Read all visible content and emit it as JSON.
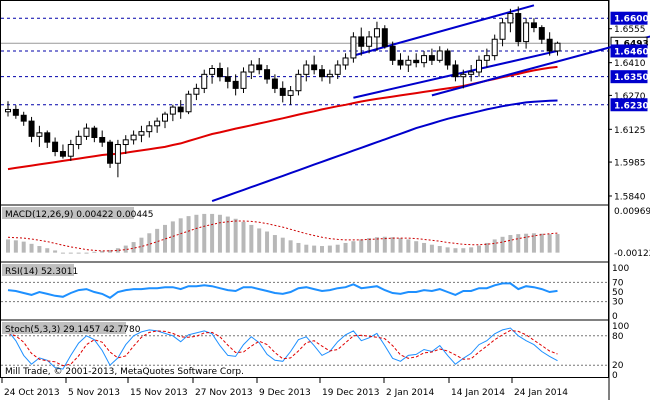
{
  "chart_data": {
    "type": "candlestick",
    "price_labels": [
      "1.6600",
      "1.6555",
      "1.6493",
      "1.6460",
      "1.6410",
      "1.6350",
      "1.6270",
      "1.6230",
      "1.6125",
      "1.5985",
      "1.5840"
    ],
    "highlight_levels": {
      "1.6600": {
        "bg": "#0000cc",
        "fg": "#ffffff"
      },
      "1.6493": {
        "bg": "#ffffff",
        "fg": "#000000",
        "border": "#000000"
      },
      "1.6460": {
        "bg": "#0000cc",
        "fg": "#ffffff"
      },
      "1.6350": {
        "bg": "#0000cc",
        "fg": "#ffffff"
      },
      "1.6230": {
        "bg": "#0000cc",
        "fg": "#ffffff"
      }
    },
    "ylim": [
      1.581,
      1.6665
    ],
    "dashed_levels": [
      1.66,
      1.646,
      1.635,
      1.623
    ],
    "current_price": 1.6493,
    "date_labels": [
      "24 Oct 2013",
      "5 Nov 2013",
      "15 Nov 2013",
      "27 Nov 2013",
      "9 Dec 2013",
      "19 Dec 2013",
      "2 Jan 2014",
      "14 Jan 2014",
      "24 Jan 2014"
    ],
    "candles": [
      {
        "o": 1.62,
        "h": 1.6245,
        "l": 1.618,
        "c": 1.621
      },
      {
        "o": 1.621,
        "h": 1.6228,
        "l": 1.617,
        "c": 1.6185
      },
      {
        "o": 1.6185,
        "h": 1.62,
        "l": 1.614,
        "c": 1.616
      },
      {
        "o": 1.616,
        "h": 1.6178,
        "l": 1.607,
        "c": 1.6095
      },
      {
        "o": 1.6095,
        "h": 1.614,
        "l": 1.605,
        "c": 1.611
      },
      {
        "o": 1.611,
        "h": 1.612,
        "l": 1.6045,
        "c": 1.607
      },
      {
        "o": 1.607,
        "h": 1.609,
        "l": 1.601,
        "c": 1.603
      },
      {
        "o": 1.603,
        "h": 1.606,
        "l": 1.6,
        "c": 1.601
      },
      {
        "o": 1.601,
        "h": 1.608,
        "l": 1.599,
        "c": 1.606
      },
      {
        "o": 1.606,
        "h": 1.612,
        "l": 1.604,
        "c": 1.6095
      },
      {
        "o": 1.6095,
        "h": 1.615,
        "l": 1.608,
        "c": 1.613
      },
      {
        "o": 1.613,
        "h": 1.614,
        "l": 1.607,
        "c": 1.609
      },
      {
        "o": 1.609,
        "h": 1.612,
        "l": 1.605,
        "c": 1.607
      },
      {
        "o": 1.607,
        "h": 1.608,
        "l": 1.596,
        "c": 1.598
      },
      {
        "o": 1.598,
        "h": 1.608,
        "l": 1.592,
        "c": 1.606
      },
      {
        "o": 1.606,
        "h": 1.61,
        "l": 1.602,
        "c": 1.608
      },
      {
        "o": 1.608,
        "h": 1.612,
        "l": 1.606,
        "c": 1.61
      },
      {
        "o": 1.61,
        "h": 1.614,
        "l": 1.607,
        "c": 1.6115
      },
      {
        "o": 1.6115,
        "h": 1.616,
        "l": 1.609,
        "c": 1.614
      },
      {
        "o": 1.614,
        "h": 1.6175,
        "l": 1.611,
        "c": 1.616
      },
      {
        "o": 1.616,
        "h": 1.62,
        "l": 1.613,
        "c": 1.619
      },
      {
        "o": 1.619,
        "h": 1.623,
        "l": 1.616,
        "c": 1.622
      },
      {
        "o": 1.622,
        "h": 1.625,
        "l": 1.617,
        "c": 1.62
      },
      {
        "o": 1.62,
        "h": 1.629,
        "l": 1.619,
        "c": 1.6275
      },
      {
        "o": 1.6275,
        "h": 1.632,
        "l": 1.625,
        "c": 1.63
      },
      {
        "o": 1.63,
        "h": 1.638,
        "l": 1.628,
        "c": 1.636
      },
      {
        "o": 1.636,
        "h": 1.64,
        "l": 1.632,
        "c": 1.6385
      },
      {
        "o": 1.6385,
        "h": 1.641,
        "l": 1.633,
        "c": 1.635
      },
      {
        "o": 1.635,
        "h": 1.639,
        "l": 1.63,
        "c": 1.633
      },
      {
        "o": 1.633,
        "h": 1.636,
        "l": 1.627,
        "c": 1.63
      },
      {
        "o": 1.63,
        "h": 1.639,
        "l": 1.628,
        "c": 1.637
      },
      {
        "o": 1.637,
        "h": 1.642,
        "l": 1.634,
        "c": 1.64
      },
      {
        "o": 1.64,
        "h": 1.643,
        "l": 1.636,
        "c": 1.638
      },
      {
        "o": 1.638,
        "h": 1.64,
        "l": 1.632,
        "c": 1.634
      },
      {
        "o": 1.634,
        "h": 1.636,
        "l": 1.628,
        "c": 1.63
      },
      {
        "o": 1.63,
        "h": 1.633,
        "l": 1.624,
        "c": 1.627
      },
      {
        "o": 1.627,
        "h": 1.631,
        "l": 1.623,
        "c": 1.629
      },
      {
        "o": 1.629,
        "h": 1.638,
        "l": 1.627,
        "c": 1.636
      },
      {
        "o": 1.636,
        "h": 1.642,
        "l": 1.633,
        "c": 1.64
      },
      {
        "o": 1.64,
        "h": 1.644,
        "l": 1.636,
        "c": 1.638
      },
      {
        "o": 1.638,
        "h": 1.64,
        "l": 1.633,
        "c": 1.635
      },
      {
        "o": 1.635,
        "h": 1.638,
        "l": 1.632,
        "c": 1.636
      },
      {
        "o": 1.636,
        "h": 1.642,
        "l": 1.634,
        "c": 1.64
      },
      {
        "o": 1.64,
        "h": 1.645,
        "l": 1.638,
        "c": 1.643
      },
      {
        "o": 1.643,
        "h": 1.654,
        "l": 1.641,
        "c": 1.652
      },
      {
        "o": 1.652,
        "h": 1.656,
        "l": 1.644,
        "c": 1.648
      },
      {
        "o": 1.648,
        "h": 1.6545,
        "l": 1.645,
        "c": 1.652
      },
      {
        "o": 1.652,
        "h": 1.6585,
        "l": 1.646,
        "c": 1.6555
      },
      {
        "o": 1.6555,
        "h": 1.657,
        "l": 1.647,
        "c": 1.648
      },
      {
        "o": 1.648,
        "h": 1.65,
        "l": 1.64,
        "c": 1.642
      },
      {
        "o": 1.642,
        "h": 1.645,
        "l": 1.638,
        "c": 1.64
      },
      {
        "o": 1.64,
        "h": 1.644,
        "l": 1.637,
        "c": 1.642
      },
      {
        "o": 1.642,
        "h": 1.645,
        "l": 1.639,
        "c": 1.641
      },
      {
        "o": 1.641,
        "h": 1.646,
        "l": 1.639,
        "c": 1.644
      },
      {
        "o": 1.644,
        "h": 1.647,
        "l": 1.64,
        "c": 1.642
      },
      {
        "o": 1.642,
        "h": 1.648,
        "l": 1.641,
        "c": 1.646
      },
      {
        "o": 1.646,
        "h": 1.647,
        "l": 1.638,
        "c": 1.64
      },
      {
        "o": 1.64,
        "h": 1.642,
        "l": 1.633,
        "c": 1.635
      },
      {
        "o": 1.635,
        "h": 1.638,
        "l": 1.63,
        "c": 1.636
      },
      {
        "o": 1.636,
        "h": 1.64,
        "l": 1.633,
        "c": 1.637
      },
      {
        "o": 1.637,
        "h": 1.644,
        "l": 1.635,
        "c": 1.642
      },
      {
        "o": 1.642,
        "h": 1.647,
        "l": 1.639,
        "c": 1.644
      },
      {
        "o": 1.644,
        "h": 1.653,
        "l": 1.642,
        "c": 1.651
      },
      {
        "o": 1.651,
        "h": 1.66,
        "l": 1.648,
        "c": 1.658
      },
      {
        "o": 1.658,
        "h": 1.664,
        "l": 1.654,
        "c": 1.662
      },
      {
        "o": 1.662,
        "h": 1.665,
        "l": 1.648,
        "c": 1.65
      },
      {
        "o": 1.65,
        "h": 1.66,
        "l": 1.647,
        "c": 1.658
      },
      {
        "o": 1.658,
        "h": 1.66,
        "l": 1.654,
        "c": 1.656
      },
      {
        "o": 1.656,
        "h": 1.657,
        "l": 1.649,
        "c": 1.651
      },
      {
        "o": 1.651,
        "h": 1.654,
        "l": 1.644,
        "c": 1.646
      },
      {
        "o": 1.646,
        "h": 1.65,
        "l": 1.644,
        "c": 1.6493
      }
    ],
    "ma_red": [
      1.5955,
      1.596,
      1.5965,
      1.597,
      1.5975,
      1.598,
      1.5985,
      1.599,
      1.5995,
      1.6,
      1.6005,
      1.601,
      1.6015,
      1.6018,
      1.602,
      1.6025,
      1.603,
      1.6035,
      1.604,
      1.6045,
      1.605,
      1.6058,
      1.6065,
      1.6075,
      1.6085,
      1.6095,
      1.6105,
      1.6112,
      1.612,
      1.6128,
      1.6135,
      1.6142,
      1.615,
      1.6157,
      1.6165,
      1.6172,
      1.618,
      1.6188,
      1.6195,
      1.6202,
      1.621,
      1.6217,
      1.6224,
      1.623,
      1.6237,
      1.6244,
      1.625,
      1.6255,
      1.626,
      1.6265,
      1.627,
      1.6275,
      1.628,
      1.6285,
      1.629,
      1.6295,
      1.63,
      1.6305,
      1.631,
      1.6318,
      1.6325,
      1.6333,
      1.634,
      1.6348,
      1.6355,
      1.6362,
      1.637,
      1.6377,
      1.6383,
      1.6388,
      1.6392
    ],
    "ma_blue": [
      null,
      null,
      null,
      null,
      null,
      null,
      null,
      null,
      null,
      null,
      null,
      null,
      null,
      null,
      null,
      null,
      null,
      null,
      null,
      null,
      null,
      null,
      null,
      null,
      null,
      null,
      1.5818,
      1.583,
      1.5842,
      1.5854,
      1.5866,
      1.5878,
      1.589,
      1.5902,
      1.5914,
      1.5926,
      1.5938,
      1.595,
      1.5962,
      1.5974,
      1.5986,
      1.5998,
      1.601,
      1.6022,
      1.6034,
      1.6046,
      1.6058,
      1.607,
      1.6082,
      1.6094,
      1.6106,
      1.6118,
      1.613,
      1.614,
      1.615,
      1.616,
      1.617,
      1.6178,
      1.6186,
      1.6194,
      1.6202,
      1.621,
      1.6217,
      1.6224,
      1.623,
      1.6235,
      1.624,
      1.6243,
      1.6245,
      1.6247,
      1.6248
    ],
    "channel_lines": [
      {
        "from": [
          44,
          1.644
        ],
        "to": [
          67,
          1.6655
        ]
      },
      {
        "from": [
          44,
          1.626
        ],
        "to": [
          70,
          1.646
        ]
      },
      {
        "from": [
          54,
          1.627
        ],
        "to": [
          86,
          1.656
        ]
      }
    ],
    "macd": {
      "label": "MACD(12,26,9) 0.00422 0.00445",
      "axis_labels": [
        "0.00969",
        "-0.00122"
      ],
      "range": [
        -0.00122,
        0.00969
      ],
      "hist": [
        0.003,
        0.0028,
        0.0025,
        0.002,
        0.0015,
        0.001,
        0.0005,
        0.0,
        -0.0002,
        -0.0001,
        0.0,
        0.0002,
        0.0004,
        0.0006,
        0.001,
        0.0016,
        0.0024,
        0.0034,
        0.0044,
        0.0054,
        0.0063,
        0.0071,
        0.0078,
        0.0083,
        0.0086,
        0.0088,
        0.0088,
        0.0086,
        0.0082,
        0.0077,
        0.007,
        0.0063,
        0.0055,
        0.0048,
        0.004,
        0.0034,
        0.0028,
        0.0022,
        0.0018,
        0.0016,
        0.0015,
        0.0016,
        0.0018,
        0.0022,
        0.0026,
        0.003,
        0.0033,
        0.0035,
        0.0036,
        0.0035,
        0.0033,
        0.003,
        0.0026,
        0.0022,
        0.0018,
        0.0015,
        0.0012,
        0.001,
        0.001,
        0.0012,
        0.0016,
        0.0022,
        0.003,
        0.0036,
        0.004,
        0.0042,
        0.0043,
        0.0044,
        0.0043,
        0.0042,
        0.00422
      ],
      "signal": [
        0.0035,
        0.0034,
        0.0033,
        0.0031,
        0.0028,
        0.0025,
        0.0021,
        0.0017,
        0.0013,
        0.001,
        0.0007,
        0.0005,
        0.0004,
        0.0004,
        0.0005,
        0.0007,
        0.001,
        0.0014,
        0.0019,
        0.0025,
        0.0031,
        0.0037,
        0.0043,
        0.0049,
        0.0055,
        0.006,
        0.0064,
        0.0068,
        0.007,
        0.0072,
        0.0072,
        0.0071,
        0.0069,
        0.0066,
        0.0062,
        0.0058,
        0.0053,
        0.0048,
        0.0043,
        0.0039,
        0.0035,
        0.0032,
        0.003,
        0.0029,
        0.0029,
        0.0029,
        0.003,
        0.0031,
        0.0032,
        0.0033,
        0.0033,
        0.0033,
        0.0032,
        0.003,
        0.0028,
        0.0026,
        0.0023,
        0.0021,
        0.0019,
        0.0018,
        0.0018,
        0.0019,
        0.0021,
        0.0024,
        0.0028,
        0.0032,
        0.0035,
        0.0038,
        0.0041,
        0.0043,
        0.00445
      ]
    },
    "rsi": {
      "label": "RSI(14) 52.3011",
      "axis_labels": [
        "100",
        "70",
        "50",
        "30",
        "0"
      ],
      "range": [
        0,
        100
      ],
      "levels": [
        70,
        30
      ],
      "values": [
        54,
        52,
        48,
        44,
        50,
        46,
        42,
        40,
        48,
        54,
        56,
        50,
        46,
        38,
        50,
        54,
        56,
        56,
        58,
        58,
        60,
        60,
        56,
        62,
        62,
        64,
        62,
        58,
        54,
        52,
        60,
        60,
        56,
        52,
        48,
        46,
        50,
        58,
        60,
        56,
        52,
        54,
        58,
        60,
        66,
        58,
        60,
        62,
        54,
        48,
        46,
        50,
        50,
        54,
        52,
        56,
        50,
        44,
        52,
        52,
        58,
        58,
        64,
        68,
        68,
        56,
        62,
        60,
        56,
        50,
        52.3
      ]
    },
    "stoch": {
      "label": "Stoch(5,3,3) 29.1457 42.7780",
      "axis_labels": [
        "100",
        "80",
        "20",
        "0"
      ],
      "range": [
        0,
        100
      ],
      "levels": [
        80,
        20
      ],
      "k": [
        90,
        70,
        40,
        22,
        35,
        30,
        15,
        12,
        40,
        65,
        80,
        72,
        50,
        20,
        35,
        62,
        80,
        88,
        92,
        90,
        85,
        80,
        68,
        82,
        86,
        90,
        84,
        60,
        40,
        38,
        62,
        78,
        66,
        42,
        30,
        28,
        48,
        72,
        78,
        60,
        40,
        48,
        68,
        82,
        90,
        70,
        76,
        85,
        60,
        34,
        28,
        40,
        42,
        52,
        48,
        60,
        40,
        22,
        34,
        44,
        62,
        70,
        84,
        92,
        96,
        80,
        70,
        62,
        48,
        38,
        29.1
      ],
      "d": [
        85,
        80,
        67,
        44,
        32,
        29,
        27,
        19,
        22,
        39,
        62,
        72,
        67,
        47,
        35,
        39,
        59,
        77,
        87,
        90,
        89,
        85,
        78,
        77,
        79,
        86,
        87,
        78,
        61,
        46,
        47,
        59,
        69,
        62,
        46,
        33,
        35,
        49,
        66,
        70,
        59,
        49,
        52,
        66,
        80,
        81,
        79,
        77,
        74,
        60,
        41,
        34,
        37,
        45,
        47,
        53,
        49,
        41,
        32,
        33,
        47,
        59,
        72,
        82,
        91,
        89,
        82,
        71,
        60,
        49,
        42.8
      ]
    },
    "copyright": "Mill Trade, © 2001-2013, MetaQuotes Software Corp."
  }
}
